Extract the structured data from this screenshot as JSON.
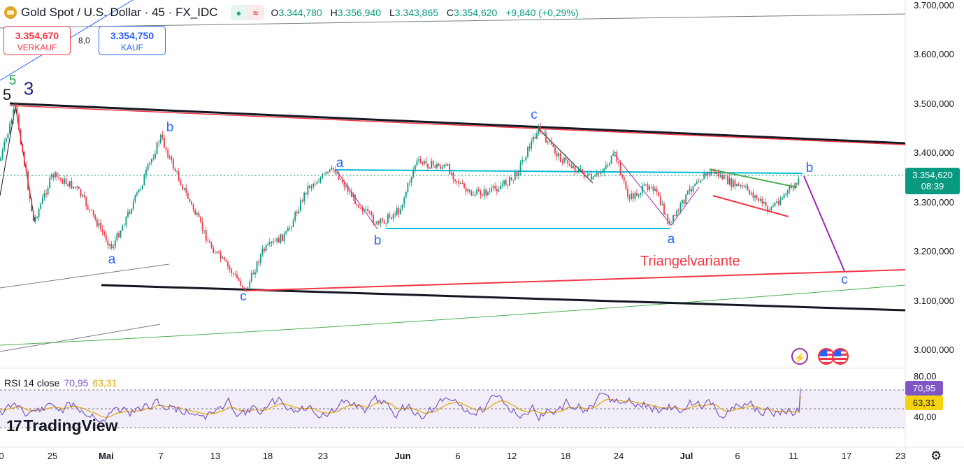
{
  "legend": {
    "title": "Gold Spot / U.S. Dollar · 45 · FX_IDC",
    "o_key": "O",
    "o_val": "3.344,780",
    "h_key": "H",
    "h_val": "3.356,940",
    "l_key": "L",
    "l_val": "3.343,865",
    "c_key": "C",
    "c_val": "3.354,620",
    "change": "+9,840 (+0,29%)"
  },
  "trade": {
    "sell_price": "3.354,670",
    "sell_label": "VERKAUF",
    "spread": "8,0",
    "buy_price": "3.354,750",
    "buy_label": "KAUF"
  },
  "price_axis": [
    "3.700,000",
    "3.600,000",
    "3.500,000",
    "3.400,000",
    "3.300,000",
    "3.200,000",
    "3.100,000",
    "3.000,000"
  ],
  "last_price": {
    "value": "3.354,620",
    "countdown": "08:39"
  },
  "time_axis": [
    "0",
    "25",
    "Mai",
    "7",
    "13",
    "18",
    "23",
    "Jun",
    "6",
    "12",
    "18",
    "24",
    "Jul",
    "6",
    "11",
    "17",
    "23"
  ],
  "wave_labels": {
    "w5_black": "5",
    "w5_green": "5",
    "w3_navy": "3",
    "a1": "a",
    "b1": "b",
    "c1": "c",
    "a2": "a",
    "b2": "b",
    "c2": "c",
    "a3": "a",
    "b3": "b",
    "c3": "c"
  },
  "annotation": "Triangelvariante",
  "rsi": {
    "name": "RSI 14 close",
    "rsi_value": "70,95",
    "ma_value": "63,31",
    "axis_top": "80,00",
    "axis_mid": "40,00",
    "tag_rsi": "70,95",
    "tag_ma": "63,31"
  },
  "branding": "TradingView",
  "colors": {
    "up": "#089981",
    "down": "#f23645",
    "rsi": "#7e57c2",
    "rsi_ma": "#e0a700",
    "wave_blue": "#2962ff"
  },
  "icons": [
    "lightning-icon",
    "us-flag-icon",
    "settings-icon"
  ]
}
